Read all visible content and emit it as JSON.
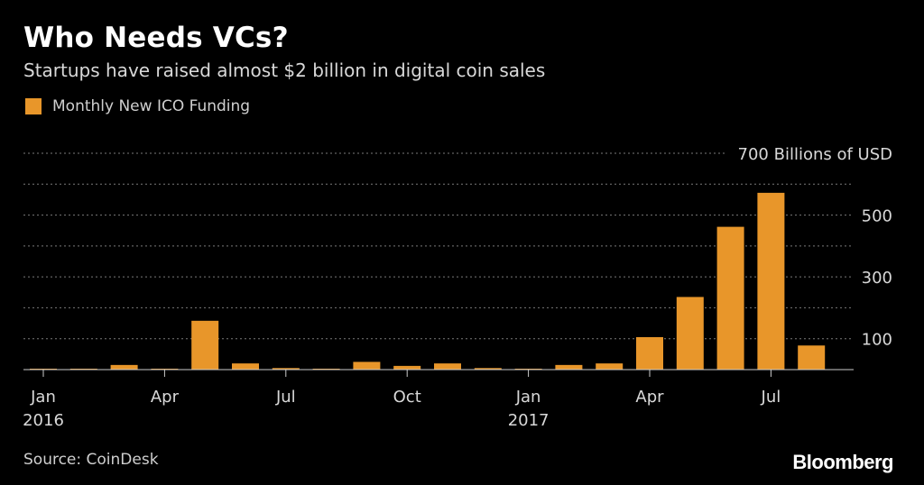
{
  "header": {
    "title": "Who Needs VCs?",
    "subtitle": "Startups have raised almost $2 billion in digital coin sales"
  },
  "legend": {
    "label": "Monthly New ICO Funding"
  },
  "footer": {
    "source": "Source: CoinDesk",
    "logo_text": "Bloomberg"
  },
  "colors": {
    "bar": "#e8962a",
    "grid": "#7a7a7a",
    "axis": "#cccccc",
    "text": "#d8d8d8"
  },
  "chart_data": {
    "type": "bar",
    "title": "Who Needs VCs?",
    "subtitle": "Startups have raised almost $2 billion in digital coin sales",
    "legend": [
      "Monthly New ICO Funding"
    ],
    "legend_position": "top-left",
    "grid": true,
    "ylim": [
      0,
      700
    ],
    "ylabel": "",
    "yunit_label": "Billions of USD",
    "yticks": [
      100,
      300,
      500,
      700
    ],
    "y_gridlines": [
      100,
      200,
      300,
      400,
      500,
      600,
      700
    ],
    "categories": [
      "2016-01",
      "2016-02",
      "2016-03",
      "2016-04",
      "2016-05",
      "2016-06",
      "2016-07",
      "2016-08",
      "2016-09",
      "2016-10",
      "2016-11",
      "2016-12",
      "2017-01",
      "2017-02",
      "2017-03",
      "2017-04",
      "2017-05",
      "2017-06",
      "2017-07",
      "2017-08"
    ],
    "x_tick_labels": [
      {
        "category": "2016-01",
        "month": "Jan",
        "year": "2016"
      },
      {
        "category": "2016-04",
        "month": "Apr",
        "year": ""
      },
      {
        "category": "2016-07",
        "month": "Jul",
        "year": ""
      },
      {
        "category": "2016-10",
        "month": "Oct",
        "year": ""
      },
      {
        "category": "2017-01",
        "month": "Jan",
        "year": "2017"
      },
      {
        "category": "2017-04",
        "month": "Apr",
        "year": ""
      },
      {
        "category": "2017-07",
        "month": "Jul",
        "year": ""
      }
    ],
    "series": [
      {
        "name": "Monthly New ICO Funding",
        "values": [
          3,
          3,
          15,
          3,
          158,
          20,
          5,
          3,
          25,
          12,
          20,
          5,
          3,
          15,
          20,
          105,
          235,
          462,
          572,
          78
        ]
      }
    ]
  }
}
